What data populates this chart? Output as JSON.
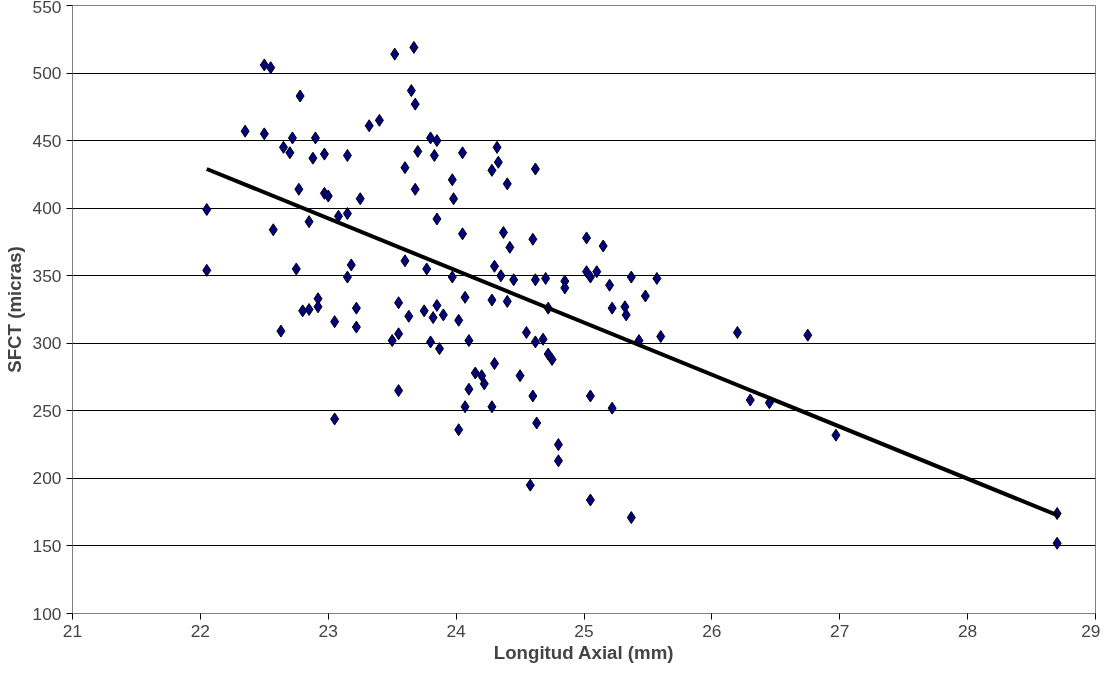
{
  "chart_data": {
    "type": "scatter",
    "xlabel": "Longitud Axial (mm)",
    "ylabel": "SFCT (micras)",
    "xlim": [
      21,
      29
    ],
    "xticks": [
      21,
      22,
      23,
      24,
      25,
      26,
      27,
      28,
      29
    ],
    "ylim": [
      100,
      550
    ],
    "yticks": [
      100,
      150,
      200,
      250,
      300,
      350,
      400,
      450,
      500,
      550
    ],
    "grid": "y",
    "series": [
      {
        "marker": "diamond",
        "color": "#000080",
        "x": [
          22.05,
          22.05,
          22.35,
          22.5,
          22.55,
          22.5,
          22.57,
          22.65,
          22.63,
          22.7,
          22.72,
          22.75,
          22.77,
          22.78,
          22.8,
          22.85,
          22.85,
          22.88,
          22.9,
          22.92,
          22.92,
          22.97,
          22.97,
          23.0,
          23.05,
          23.05,
          23.08,
          23.15,
          23.15,
          23.15,
          23.18,
          23.22,
          23.22,
          23.25,
          23.32,
          23.4,
          23.5,
          23.52,
          23.55,
          23.55,
          23.55,
          23.6,
          23.6,
          23.63,
          23.65,
          23.67,
          23.68,
          23.68,
          23.7,
          23.75,
          23.77,
          23.8,
          23.8,
          23.82,
          23.83,
          23.85,
          23.85,
          23.85,
          23.87,
          23.9,
          23.97,
          23.97,
          23.98,
          24.02,
          24.02,
          24.05,
          24.05,
          24.07,
          24.07,
          24.1,
          24.1,
          24.15,
          24.2,
          24.22,
          24.28,
          24.28,
          24.28,
          24.3,
          24.3,
          24.32,
          24.33,
          24.35,
          24.37,
          24.4,
          24.4,
          24.42,
          24.45,
          24.5,
          24.55,
          24.6,
          24.58,
          24.6,
          24.62,
          24.62,
          24.62,
          24.63,
          24.68,
          24.7,
          24.72,
          24.72,
          24.75,
          24.8,
          24.8,
          24.85,
          24.85,
          25.02,
          25.02,
          25.05,
          25.05,
          25.05,
          25.1,
          25.15,
          25.2,
          25.22,
          25.22,
          25.32,
          25.33,
          25.37,
          25.37,
          25.43,
          25.48,
          25.57,
          25.6,
          26.2,
          26.3,
          26.45,
          26.75,
          26.97,
          28.7,
          28.7
        ],
        "values": [
          399,
          354,
          457,
          506,
          504,
          455,
          384,
          445,
          309,
          441,
          452,
          355,
          414,
          483,
          324,
          325,
          390,
          437,
          452,
          333,
          327,
          440,
          411,
          409,
          316,
          244,
          394,
          396,
          439,
          349,
          358,
          326,
          312,
          407,
          461,
          465,
          302,
          514,
          330,
          307,
          265,
          361,
          430,
          320,
          487,
          519,
          414,
          477,
          442,
          324,
          355,
          452,
          301,
          319,
          439,
          328,
          450,
          392,
          296,
          321,
          421,
          349,
          407,
          317,
          236,
          441,
          381,
          253,
          334,
          266,
          302,
          278,
          276,
          270,
          428,
          253,
          332,
          285,
          357,
          445,
          434,
          350,
          382,
          331,
          418,
          371,
          347,
          276,
          308,
          261,
          195,
          377,
          429,
          347,
          301,
          241,
          303,
          348,
          326,
          292,
          288,
          225,
          213,
          346,
          341,
          378,
          353,
          184,
          261,
          349,
          353,
          372,
          343,
          326,
          252,
          327,
          321,
          171,
          349,
          302,
          335,
          348,
          305,
          308,
          258,
          256,
          306,
          232,
          174,
          152
        ]
      },
      {
        "type": "line",
        "marker": "none",
        "color": "#000000",
        "x": [
          22.05,
          28.72
        ],
        "values": [
          429,
          172
        ]
      }
    ]
  }
}
